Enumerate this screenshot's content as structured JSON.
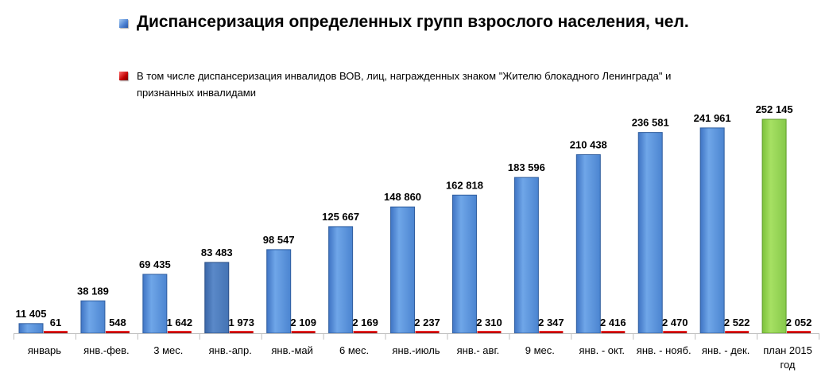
{
  "chart_data": {
    "type": "bar",
    "categories": [
      "январь",
      "янв.-фев.",
      "3 мес.",
      "янв.-апр.",
      "янв.-май",
      "6 мес.",
      "янв.-июль",
      "янв.- авг.",
      "9 мес.",
      "янв. - окт.",
      "янв. - нояб.",
      "янв. - дек.",
      "план 2015 год"
    ],
    "categories_lines": [
      [
        "январь"
      ],
      [
        "янв.-фев."
      ],
      [
        "3 мес."
      ],
      [
        "янв.-апр."
      ],
      [
        "янв.-май"
      ],
      [
        "6 мес."
      ],
      [
        "янв.-июль"
      ],
      [
        "янв.- авг."
      ],
      [
        "9 мес."
      ],
      [
        "янв. - окт."
      ],
      [
        "янв. - нояб."
      ],
      [
        "янв. - дек."
      ],
      [
        "план 2015",
        "год"
      ]
    ],
    "series": [
      {
        "name": "Диспансеризация определенных групп взрослого населения, чел.",
        "values": [
          11405,
          38189,
          69435,
          83483,
          98547,
          125667,
          148860,
          162818,
          183596,
          210438,
          236581,
          241961,
          252145
        ],
        "labels": [
          "11 405",
          "38 189",
          "69 435",
          "83 483",
          "98 547",
          "125 667",
          "148 860",
          "162 818",
          "183 596",
          "210 438",
          "236 581",
          "241 961",
          "252 145"
        ],
        "color": "#5b9be0",
        "highlight": {
          "index": 12,
          "color": "#92d050"
        },
        "darker": {
          "index": 3,
          "color": "#4f81bd"
        }
      },
      {
        "name": "В том числе диспансеризация инвалидов ВОВ, лиц, награжденных знаком \"Жителю блокадного Ленинграда\" и признанных инвалидами",
        "values": [
          61,
          548,
          1642,
          1973,
          2109,
          2169,
          2237,
          2310,
          2347,
          2416,
          2470,
          2522,
          2052
        ],
        "labels": [
          "61",
          "548",
          "1 642",
          "1 973",
          "2 109",
          "2 169",
          "2 237",
          "2 310",
          "2 347",
          "2 416",
          "2 470",
          "2 522",
          "2 052"
        ],
        "color": "#c00000"
      }
    ],
    "ylim": [
      0,
      252145
    ],
    "grid": false,
    "legend_position": "top-left"
  }
}
